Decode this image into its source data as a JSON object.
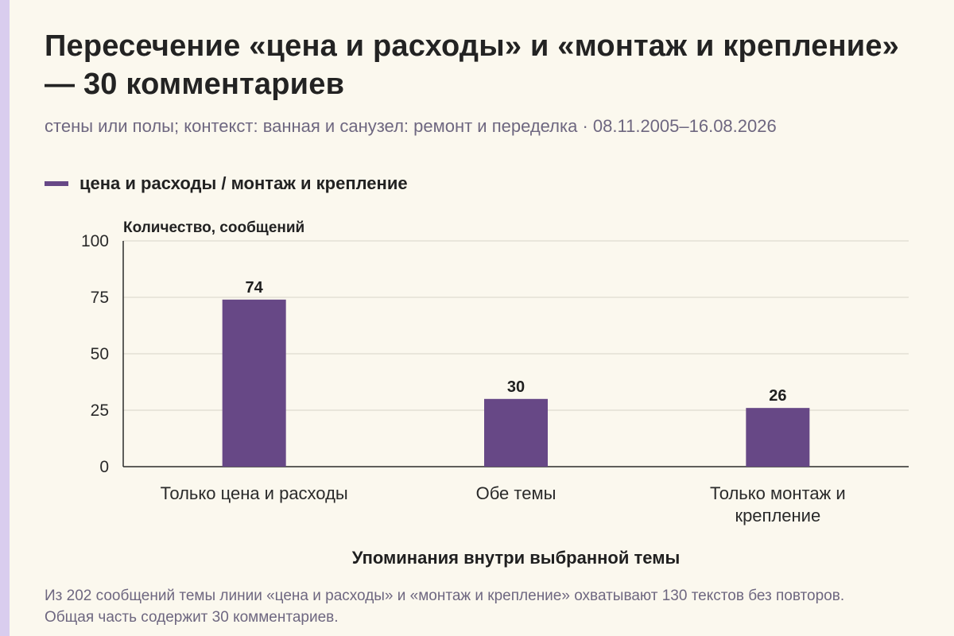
{
  "title": "Пересечение «цена и расходы» и «монтаж и крепление» — 30 комментариев",
  "subtitle": "стены или полы; контекст: ванная и санузел: ремонт и переделка · 08.11.2005–16.08.2026",
  "legend": {
    "label": "цена и расходы / монтаж и крепление"
  },
  "colors": {
    "bar": "#674886",
    "grid": "#d7d3c8",
    "axis": "#2a2a2a",
    "background": "#fbf8ee"
  },
  "chart_data": {
    "type": "bar",
    "ylabel": "Количество, сообщений",
    "xlabel": "Упоминания внутри выбранной темы",
    "ylim": [
      0,
      100
    ],
    "yticks": [
      0,
      25,
      50,
      75,
      100
    ],
    "grid": true,
    "legend_position": "top-left",
    "categories": [
      [
        "Только цена и расходы"
      ],
      [
        "Обе темы"
      ],
      [
        "Только монтаж и",
        "крепление"
      ]
    ],
    "series": [
      {
        "name": "цена и расходы / монтаж и крепление",
        "values": [
          74,
          30,
          26
        ]
      }
    ]
  },
  "footnote": "Из 202 сообщений темы линии «цена и расходы» и «монтаж и крепление» охватывают 130 текстов без повторов. Общая часть содержит 30 комментариев."
}
